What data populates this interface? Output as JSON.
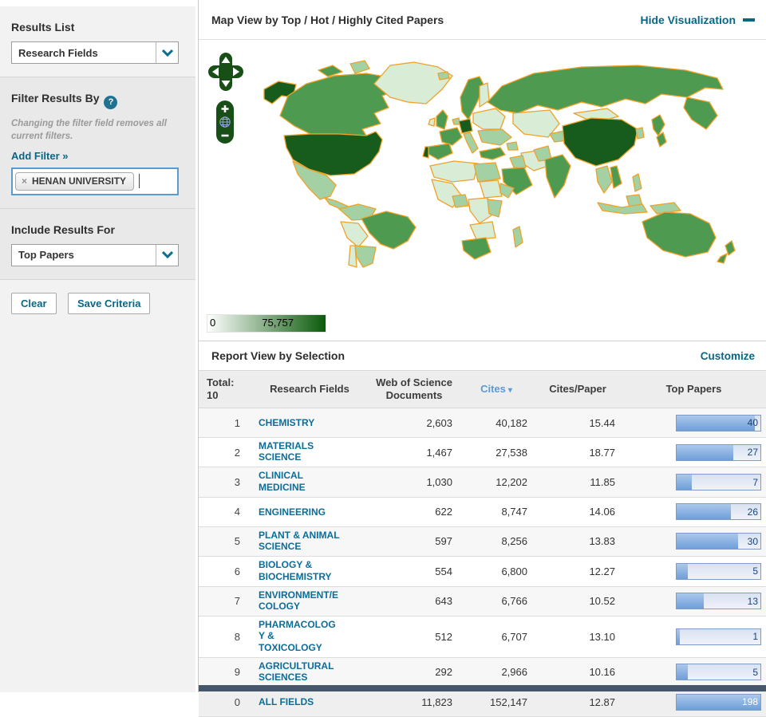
{
  "sidebar": {
    "results_list_label": "Results List",
    "results_list_value": "Research Fields",
    "filter_title": "Filter Results By",
    "help_icon": "?",
    "filter_note": "Changing the filter field removes all current filters.",
    "add_filter_label": "Add Filter »",
    "filter_tag": {
      "remove": "×",
      "label": "HENAN UNIVERSITY"
    },
    "include_label": "Include Results For",
    "include_value": "Top Papers",
    "clear_button": "Clear",
    "save_button": "Save Criteria"
  },
  "map": {
    "title": "Map View by Top / Hot / Highly Cited Papers",
    "hide_link": "Hide Visualization",
    "legend_min": "0",
    "legend_max": "75,757",
    "zoom_in": "+",
    "zoom_out": "−"
  },
  "report": {
    "title": "Report View by Selection",
    "customize": "Customize",
    "headers": {
      "total_label": "Total:",
      "total_count": "10",
      "fields": "Research Fields",
      "docs": "Web of Science Documents",
      "cites": "Cites",
      "sort_icon": "▾",
      "cpp": "Cites/Paper",
      "top": "Top Papers"
    },
    "rows": [
      {
        "rank": "1",
        "field": "CHEMISTRY",
        "docs": "2,603",
        "cites": "40,182",
        "cpp": "15.44",
        "top": "40",
        "bar_pct": 93
      },
      {
        "rank": "2",
        "field": "MATERIALS SCIENCE",
        "docs": "1,467",
        "cites": "27,538",
        "cpp": "18.77",
        "top": "27",
        "bar_pct": 68
      },
      {
        "rank": "3",
        "field": "CLINICAL MEDICINE",
        "docs": "1,030",
        "cites": "12,202",
        "cpp": "11.85",
        "top": "7",
        "bar_pct": 18
      },
      {
        "rank": "4",
        "field": "ENGINEERING",
        "docs": "622",
        "cites": "8,747",
        "cpp": "14.06",
        "top": "26",
        "bar_pct": 65
      },
      {
        "rank": "5",
        "field": "PLANT & ANIMAL SCIENCE",
        "docs": "597",
        "cites": "8,256",
        "cpp": "13.83",
        "top": "30",
        "bar_pct": 73
      },
      {
        "rank": "6",
        "field": "BIOLOGY & BIOCHEMISTRY",
        "docs": "554",
        "cites": "6,800",
        "cpp": "12.27",
        "top": "5",
        "bar_pct": 13
      },
      {
        "rank": "7",
        "field": "ENVIRONMENT/ECOLOGY",
        "docs": "643",
        "cites": "6,766",
        "cpp": "10.52",
        "top": "13",
        "bar_pct": 32
      },
      {
        "rank": "8",
        "field": "PHARMACOLOGY & TOXICOLOGY",
        "docs": "512",
        "cites": "6,707",
        "cpp": "13.10",
        "top": "1",
        "bar_pct": 4
      },
      {
        "rank": "9",
        "field": "AGRICULTURAL SCIENCES",
        "docs": "292",
        "cites": "2,966",
        "cpp": "10.16",
        "top": "5",
        "bar_pct": 13
      },
      {
        "rank": "0",
        "field": "ALL FIELDS",
        "docs": "11,823",
        "cites": "152,147",
        "cpp": "12.87",
        "top": "198",
        "bar_pct": 100
      }
    ]
  },
  "colors": {
    "accent_teal": "#076787",
    "sort_blue": "#5b9bd5",
    "map_dark_green": "#175c1d",
    "map_medium_green": "#4e9a50",
    "map_light_green": "#a4d1a4",
    "map_pale_green": "#d8ecd6",
    "map_border_orange": "#eea229",
    "legend_max_green": "#0b5a0b",
    "bar_fill_blue": "#6e9ed9",
    "footer_bar": "#46566b"
  }
}
